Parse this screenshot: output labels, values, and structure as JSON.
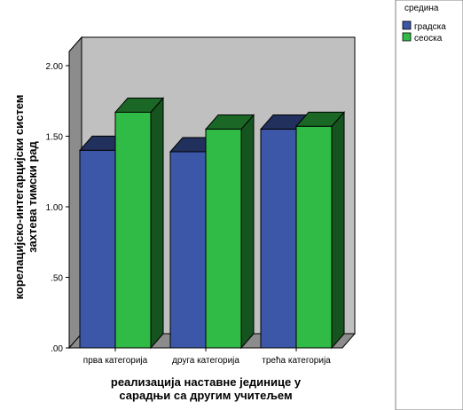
{
  "chart_data": {
    "type": "bar",
    "categories": [
      "прва категорија",
      "друга категорија",
      "трећа категорија"
    ],
    "series": [
      {
        "name": "градска",
        "values": [
          1.4,
          1.39,
          1.55
        ],
        "color": "#3c57a8"
      },
      {
        "name": "сеоска",
        "values": [
          1.67,
          1.55,
          1.57
        ],
        "color": "#2fbb45"
      }
    ],
    "ylim": [
      0,
      2
    ],
    "yticks": [
      ".00",
      ".50",
      "1.00",
      "1.50",
      "2.00"
    ],
    "xlabel": [
      "реализација наставне јединице у",
      "сарадњи са другим учитељем"
    ],
    "ylabel": [
      "корелацијско-интегарцијски систем",
      "захтева тимски рад"
    ],
    "legend": {
      "title": "средина",
      "position": "top-right"
    },
    "style": "3d"
  }
}
